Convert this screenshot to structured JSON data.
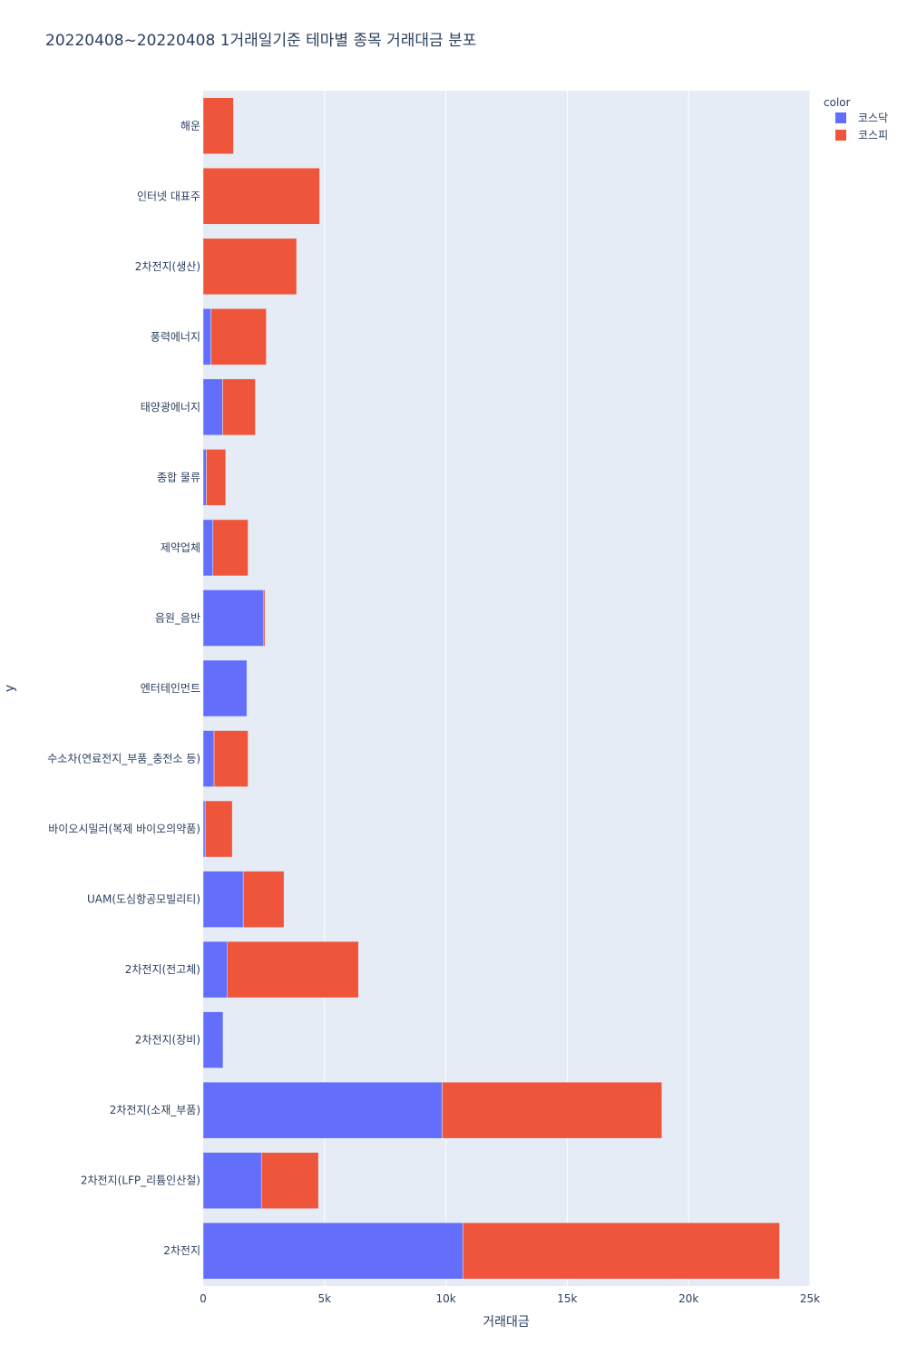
{
  "chart_data": {
    "type": "bar",
    "orientation": "horizontal",
    "barmode": "stack",
    "title": "20220408~20220408 1거래일기준 테마별 종목 거래대금 분포",
    "xlabel": "거래대금",
    "ylabel": "y",
    "xlim": [
      0,
      25000
    ],
    "x_ticks": [
      {
        "value": 0,
        "label": "0"
      },
      {
        "value": 5000,
        "label": "5k"
      },
      {
        "value": 10000,
        "label": "10k"
      },
      {
        "value": 15000,
        "label": "15k"
      },
      {
        "value": 20000,
        "label": "20k"
      },
      {
        "value": 25000,
        "label": "25k"
      }
    ],
    "grid": true,
    "legend": {
      "title": "color",
      "placement": "top-right"
    },
    "categories": [
      "해운",
      "인터넷 대표주",
      "2차전지(생산)",
      "풍력에너지",
      "태양광에너지",
      "종합 물류",
      "제약업체",
      "음원_음반",
      "엔터테인먼트",
      "수소차(연료전지_부품_충전소 등)",
      "바이오시밀러(복제 바이오의약품)",
      "UAM(도심항공모빌리티)",
      "2차전지(전고체)",
      "2차전지(장비)",
      "2차전지(소재_부품)",
      "2차전지(LFP_리튬인산철)",
      "2차전지"
    ],
    "series": [
      {
        "name": "코스닥",
        "color": "#636efa",
        "values": [
          0,
          0,
          0,
          320,
          800,
          130,
          400,
          2500,
          1800,
          450,
          80,
          1650,
          1000,
          820,
          9850,
          2400,
          10700
        ]
      },
      {
        "name": "코스피",
        "color": "#ef553b",
        "values": [
          1250,
          4800,
          3850,
          2280,
          1350,
          800,
          1450,
          50,
          0,
          1400,
          1120,
          1680,
          5400,
          0,
          9050,
          2350,
          13050
        ]
      }
    ]
  }
}
